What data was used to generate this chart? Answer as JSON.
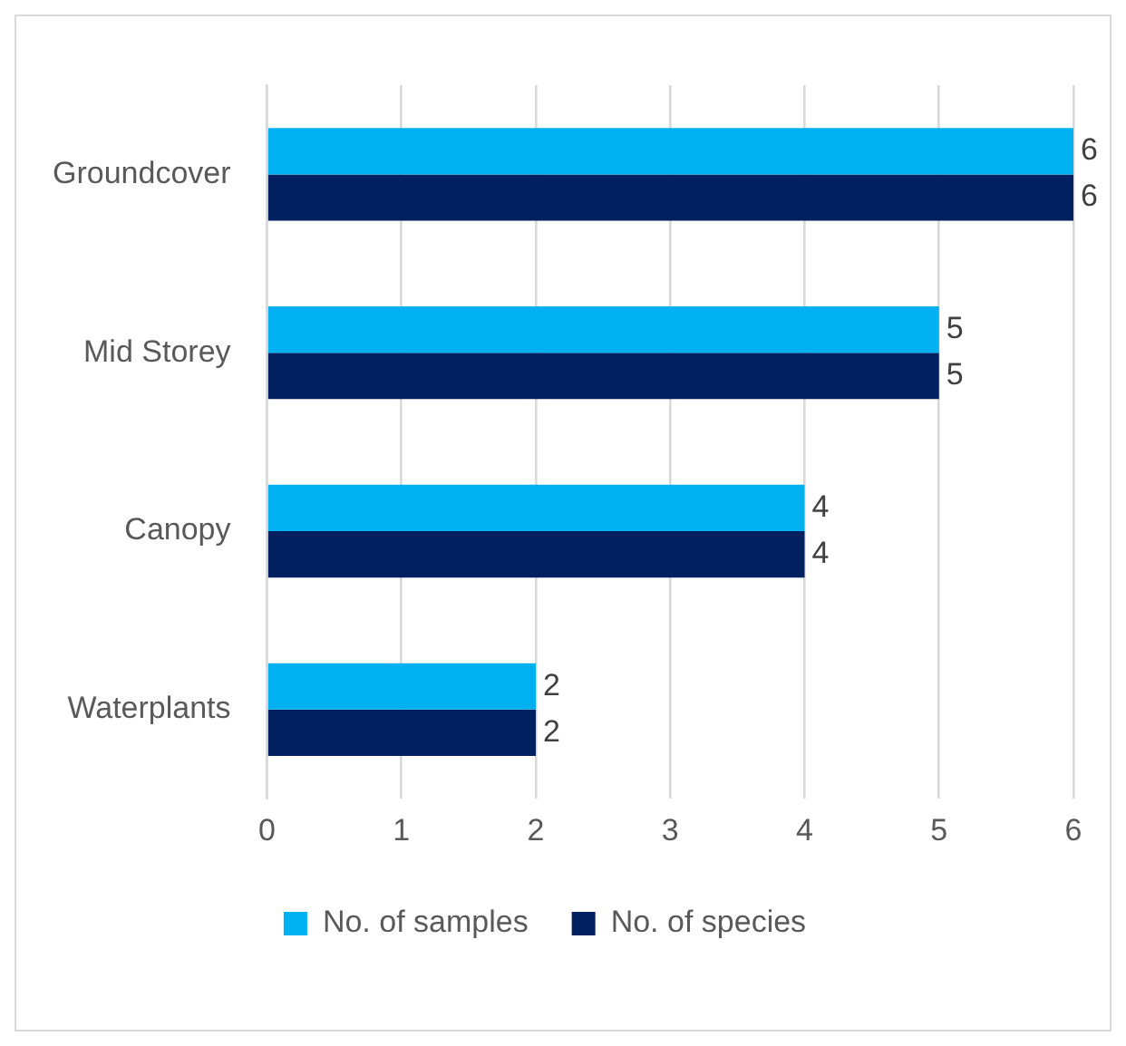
{
  "chart_data": {
    "type": "bar",
    "orientation": "horizontal",
    "categories": [
      "Groundcover",
      "Mid Storey",
      "Canopy",
      "Waterplants"
    ],
    "series": [
      {
        "name": "No. of samples",
        "color": "#00b0f0",
        "values": [
          6,
          5,
          4,
          2
        ]
      },
      {
        "name": "No. of species",
        "color": "#002060",
        "values": [
          6,
          5,
          4,
          2
        ]
      }
    ],
    "xlim": [
      0,
      6
    ],
    "xticks": [
      0,
      1,
      2,
      3,
      4,
      5,
      6
    ],
    "grid": "x",
    "legend": "bottom",
    "data_labels": true
  }
}
